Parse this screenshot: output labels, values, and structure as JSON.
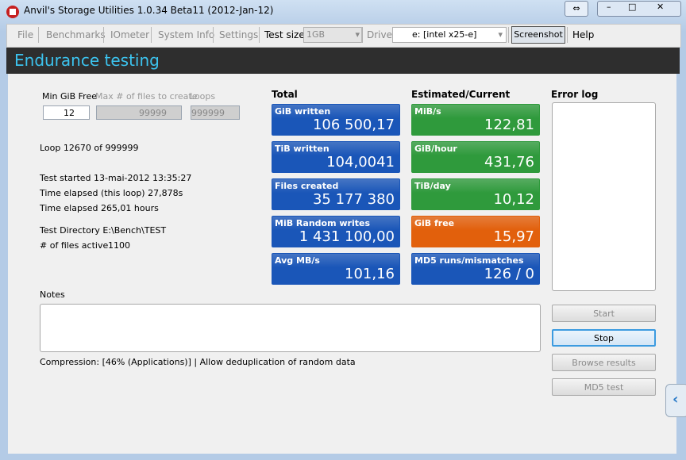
{
  "window": {
    "title": "Anvil's Storage Utilities 1.0.34 Beta11 (2012-Jan-12)"
  },
  "menu": {
    "items": [
      "File",
      "Benchmarks",
      "IOmeter",
      "System Info",
      "Settings"
    ],
    "test_size_label": "Test size",
    "test_size": "1GB",
    "drive_label": "Drive",
    "drive": "e: [intel x25-e]",
    "screenshot": "Screenshot",
    "help": "Help"
  },
  "header": {
    "title": "Endurance testing"
  },
  "settings": {
    "min_free_label": "Min GiB Free",
    "min_free": "12",
    "max_files_label": "Max # of files to create",
    "max_files": "99999",
    "loops_label": "Loops",
    "loops": "999999"
  },
  "status": {
    "loop": "Loop 12670 of 999999",
    "timing": [
      "Test started 13-mai-2012 13:35:27",
      "Time elapsed (this loop) 27,878s",
      "Time elapsed 265,01 hours"
    ],
    "directory": "Test Directory E:\\Bench\\TEST",
    "files_active_label": "# of files active",
    "files_active": "1100"
  },
  "total": {
    "heading": "Total",
    "tiles": [
      {
        "label": "GiB written",
        "value": "106 500,17",
        "color": "#1a56b8"
      },
      {
        "label": "TiB written",
        "value": "104,0041",
        "color": "#1a56b8"
      },
      {
        "label": "Files created",
        "value": "35 177 380",
        "color": "#1a56b8"
      },
      {
        "label": "MiB Random writes",
        "value": "1 431 100,00",
        "color": "#1a56b8"
      },
      {
        "label": "Avg MB/s",
        "value": "101,16",
        "color": "#1a56b8"
      }
    ]
  },
  "estimated": {
    "heading": "Estimated/Current",
    "tiles": [
      {
        "label": "MiB/s",
        "value": "122,81",
        "color": "#2f9a3c"
      },
      {
        "label": "GiB/hour",
        "value": "431,76",
        "color": "#2f9a3c"
      },
      {
        "label": "TiB/day",
        "value": "10,12",
        "color": "#2f9a3c"
      },
      {
        "label": "GiB free",
        "value": "15,97",
        "color": "#e2600c"
      },
      {
        "label": "MD5 runs/mismatches",
        "value": "126 / 0",
        "color": "#1a56b8"
      }
    ]
  },
  "error_log": {
    "label": "Error log"
  },
  "notes": {
    "label": "Notes"
  },
  "compression": "Compression: [46% (Applications)] | Allow deduplication of random data",
  "buttons": [
    "Start",
    "Stop",
    "Browse results",
    "MD5 test"
  ]
}
